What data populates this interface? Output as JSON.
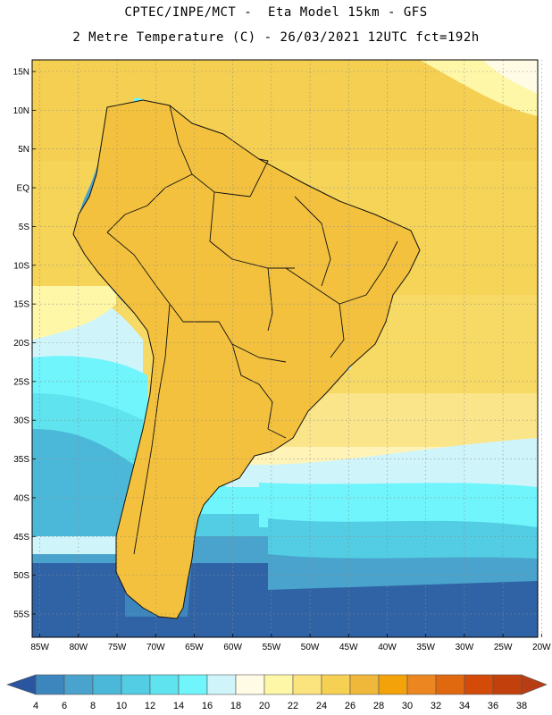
{
  "header": {
    "line1": "CPTEC/INPE/MCT -  Eta Model 15km - GFS",
    "line2": "2 Metre Temperature (C) - 26/03/2021 12UTC fct=192h"
  },
  "map": {
    "lat_labels": [
      "15N",
      "10N",
      "5N",
      "EQ",
      "5S",
      "10S",
      "15S",
      "20S",
      "25S",
      "30S",
      "35S",
      "40S",
      "45S",
      "50S",
      "55S"
    ],
    "lon_labels": [
      "85W",
      "80W",
      "75W",
      "70W",
      "65W",
      "60W",
      "55W",
      "50W",
      "45W",
      "40W",
      "35W",
      "30W",
      "25W",
      "20W"
    ],
    "lat_range": [
      -58,
      16.5
    ],
    "lon_range": [
      -86,
      -20.5
    ],
    "grid": "dotted"
  },
  "colorbar": {
    "labels": [
      "4",
      "6",
      "8",
      "10",
      "12",
      "14",
      "16",
      "18",
      "20",
      "22",
      "24",
      "26",
      "28",
      "30",
      "32",
      "34",
      "36",
      "38"
    ],
    "colors": [
      "#2f63a6",
      "#3c86bd",
      "#4aa3cc",
      "#4cb8d9",
      "#52cde4",
      "#5ee3ef",
      "#6ff5fb",
      "#cff5fb",
      "#fffbe5",
      "#fff7a8",
      "#fbe37e",
      "#f6d052",
      "#f0b83a",
      "#f3a20a",
      "#eb8620",
      "#e0680f",
      "#d34a09",
      "#c2400b"
    ],
    "low_arrow_color": "#2a56a0",
    "high_arrow_color": "#b83d14"
  },
  "colors": {
    "ocean_warm": "#f5d36a",
    "ocean_tropical": "#fde07d",
    "land_warm": "#f0b83a",
    "andes_cold": "#3c86bd",
    "south_ocean": "#2f63a6"
  }
}
